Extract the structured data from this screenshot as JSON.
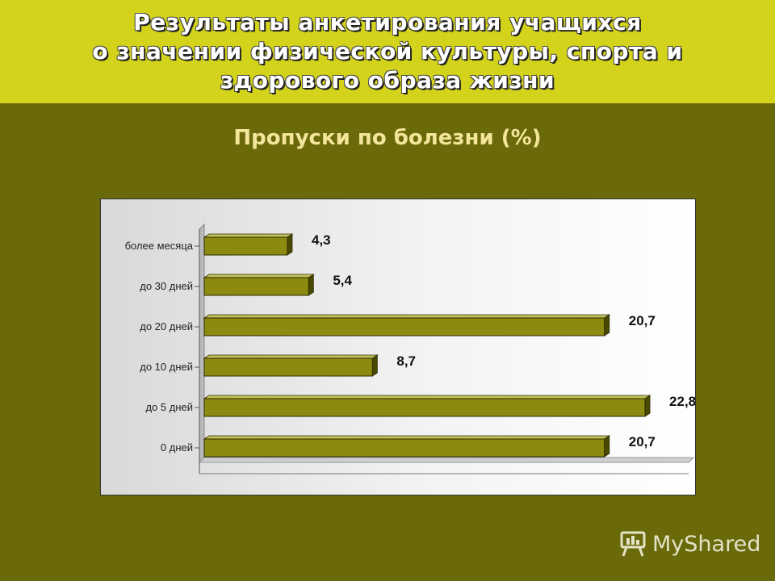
{
  "header": {
    "title_lines": [
      "Результаты анкетирования учащихся",
      "о значении физической культуры, спорта и",
      "здорового образа жизни"
    ]
  },
  "watermark": {
    "text": "MyShared",
    "icon": "presentation-board-icon"
  },
  "colors": {
    "header_bg": "#d3d31b",
    "slide_bg": "#6b6a0b",
    "bar_fill": "#8c8a10",
    "subtitle": "#f3e59a"
  },
  "chart_data": {
    "type": "bar",
    "orientation": "horizontal",
    "title": "Пропуски по болезни (%)",
    "categories": [
      "более месяца",
      "до 30 дней",
      "до 20 дней",
      "до 10 дней",
      "до 5 дней",
      "0 дней"
    ],
    "values": [
      4.3,
      5.4,
      20.7,
      8.7,
      22.8,
      20.7
    ],
    "data_labels": [
      "4,3",
      "5,4",
      "20,7",
      "8,7",
      "22,8",
      "20,7"
    ],
    "xlabel": "",
    "ylabel": "",
    "xlim": [
      0,
      25
    ],
    "grid": false,
    "legend": "none",
    "style": "3d"
  }
}
